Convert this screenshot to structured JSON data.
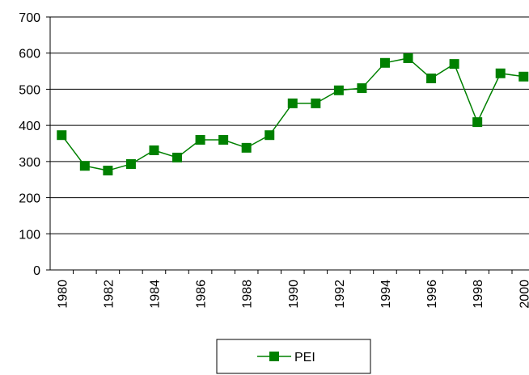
{
  "chart_data": {
    "type": "line",
    "categories": [
      "1980",
      null,
      "1982",
      null,
      "1984",
      null,
      "1986",
      null,
      "1988",
      null,
      "1990",
      null,
      "1992",
      null,
      "1994",
      null,
      "1996",
      null,
      "1998",
      null,
      "2000"
    ],
    "series": [
      {
        "name": "PEI",
        "color": "#008000",
        "values": [
          373,
          288,
          275,
          293,
          331,
          311,
          360,
          360,
          338,
          373,
          461,
          461,
          497,
          503,
          573,
          586,
          530,
          570,
          409,
          544,
          535
        ]
      }
    ],
    "ylim": [
      0,
      700
    ],
    "yticks": [
      0,
      100,
      200,
      300,
      400,
      500,
      600,
      700
    ],
    "grid": true,
    "legend": "bottom"
  }
}
